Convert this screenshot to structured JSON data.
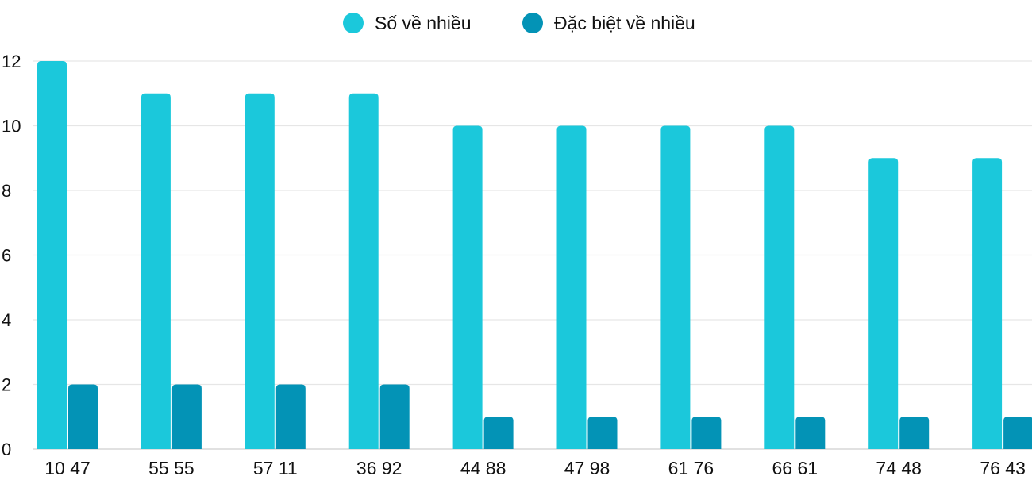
{
  "chart_data": {
    "type": "bar",
    "categories": [
      "10 47",
      "55 55",
      "57 11",
      "36 92",
      "44 88",
      "47 98",
      "61 76",
      "66 61",
      "74 48",
      "76 43"
    ],
    "series": [
      {
        "name": "Số về nhiều",
        "color": "#1bc8db",
        "values": [
          12,
          11,
          11,
          11,
          10,
          10,
          10,
          10,
          9,
          9
        ]
      },
      {
        "name": "Đặc biệt về nhiều",
        "color": "#0393b6",
        "values": [
          2,
          2,
          2,
          2,
          1,
          1,
          1,
          1,
          1,
          1
        ]
      }
    ],
    "ylim": [
      0,
      12
    ],
    "yticks": [
      0,
      2,
      4,
      6,
      8,
      10,
      12
    ],
    "grid": true,
    "legend": "top-center",
    "xlabel": "",
    "ylabel": ""
  }
}
